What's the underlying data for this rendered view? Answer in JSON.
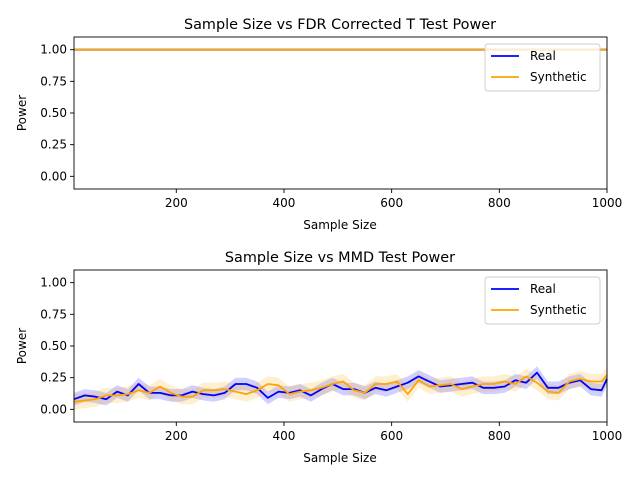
{
  "colors": {
    "real": "#0000ff",
    "synthetic": "#ffa500"
  },
  "chart_data": [
    {
      "type": "line",
      "title": "Sample Size vs FDR Corrected T Test Power",
      "xlabel": "Sample Size",
      "ylabel": "Power",
      "xlim": [
        10,
        1000
      ],
      "ylim": [
        -0.1,
        1.1
      ],
      "xticks": [
        "200",
        "400",
        "600",
        "800",
        "1000"
      ],
      "yticks": [
        "0.00",
        "0.25",
        "0.50",
        "0.75",
        "1.00"
      ],
      "legend_position": "top-right",
      "legend": [
        "Real",
        "Synthetic"
      ],
      "x": [
        10,
        30,
        50,
        70,
        90,
        110,
        130,
        150,
        170,
        190,
        210,
        230,
        250,
        270,
        290,
        310,
        330,
        350,
        370,
        390,
        410,
        430,
        450,
        470,
        490,
        510,
        530,
        550,
        570,
        590,
        610,
        630,
        650,
        670,
        690,
        710,
        730,
        750,
        770,
        790,
        810,
        830,
        850,
        870,
        890,
        910,
        930,
        950,
        970,
        990,
        1000
      ],
      "series": [
        {
          "name": "Real",
          "color": "#0000ff",
          "values": [
            1,
            1,
            1,
            1,
            1,
            1,
            1,
            1,
            1,
            1,
            1,
            1,
            1,
            1,
            1,
            1,
            1,
            1,
            1,
            1,
            1,
            1,
            1,
            1,
            1,
            1,
            1,
            1,
            1,
            1,
            1,
            1,
            1,
            1,
            1,
            1,
            1,
            1,
            1,
            1,
            1,
            1,
            1,
            1,
            1,
            1,
            1,
            1,
            1,
            1,
            1
          ],
          "band": 0
        },
        {
          "name": "Synthetic",
          "color": "#ffa500",
          "values": [
            1,
            1,
            1,
            1,
            1,
            1,
            1,
            1,
            1,
            1,
            1,
            1,
            1,
            1,
            1,
            1,
            1,
            1,
            1,
            1,
            1,
            1,
            1,
            1,
            1,
            1,
            1,
            1,
            1,
            1,
            1,
            1,
            1,
            1,
            1,
            1,
            1,
            1,
            1,
            1,
            1,
            1,
            1,
            1,
            1,
            1,
            1,
            1,
            1,
            1,
            1
          ],
          "band": 0
        }
      ]
    },
    {
      "type": "line",
      "title": "Sample Size vs MMD Test Power",
      "xlabel": "Sample Size",
      "ylabel": "Power",
      "xlim": [
        10,
        1000
      ],
      "ylim": [
        -0.1,
        1.1
      ],
      "xticks": [
        "200",
        "400",
        "600",
        "800",
        "1000"
      ],
      "yticks": [
        "0.00",
        "0.25",
        "0.50",
        "0.75",
        "1.00"
      ],
      "legend_position": "top-right",
      "legend": [
        "Real",
        "Synthetic"
      ],
      "x": [
        10,
        30,
        50,
        70,
        90,
        110,
        130,
        150,
        170,
        190,
        210,
        230,
        250,
        270,
        290,
        310,
        330,
        350,
        370,
        390,
        410,
        430,
        450,
        470,
        490,
        510,
        530,
        550,
        570,
        590,
        610,
        630,
        650,
        670,
        690,
        710,
        730,
        750,
        770,
        790,
        810,
        830,
        850,
        870,
        890,
        910,
        930,
        950,
        970,
        990,
        1000
      ],
      "series": [
        {
          "name": "Real",
          "color": "#0000ff",
          "values": [
            0.08,
            0.11,
            0.1,
            0.08,
            0.14,
            0.11,
            0.2,
            0.13,
            0.13,
            0.11,
            0.11,
            0.14,
            0.12,
            0.11,
            0.13,
            0.2,
            0.2,
            0.17,
            0.09,
            0.14,
            0.13,
            0.15,
            0.11,
            0.16,
            0.2,
            0.16,
            0.16,
            0.13,
            0.17,
            0.15,
            0.18,
            0.21,
            0.26,
            0.22,
            0.18,
            0.19,
            0.2,
            0.21,
            0.17,
            0.17,
            0.18,
            0.23,
            0.21,
            0.29,
            0.17,
            0.17,
            0.21,
            0.23,
            0.16,
            0.15,
            0.24
          ],
          "band": 0.05
        },
        {
          "name": "Synthetic",
          "color": "#ffa500",
          "values": [
            0.06,
            0.07,
            0.08,
            0.11,
            0.11,
            0.12,
            0.15,
            0.13,
            0.18,
            0.13,
            0.1,
            0.1,
            0.15,
            0.15,
            0.16,
            0.14,
            0.12,
            0.15,
            0.2,
            0.19,
            0.12,
            0.14,
            0.15,
            0.17,
            0.2,
            0.22,
            0.15,
            0.13,
            0.2,
            0.2,
            0.22,
            0.12,
            0.23,
            0.18,
            0.19,
            0.2,
            0.16,
            0.18,
            0.2,
            0.2,
            0.22,
            0.2,
            0.26,
            0.21,
            0.14,
            0.13,
            0.22,
            0.24,
            0.22,
            0.22,
            0.27
          ],
          "band": 0.06
        }
      ]
    }
  ]
}
